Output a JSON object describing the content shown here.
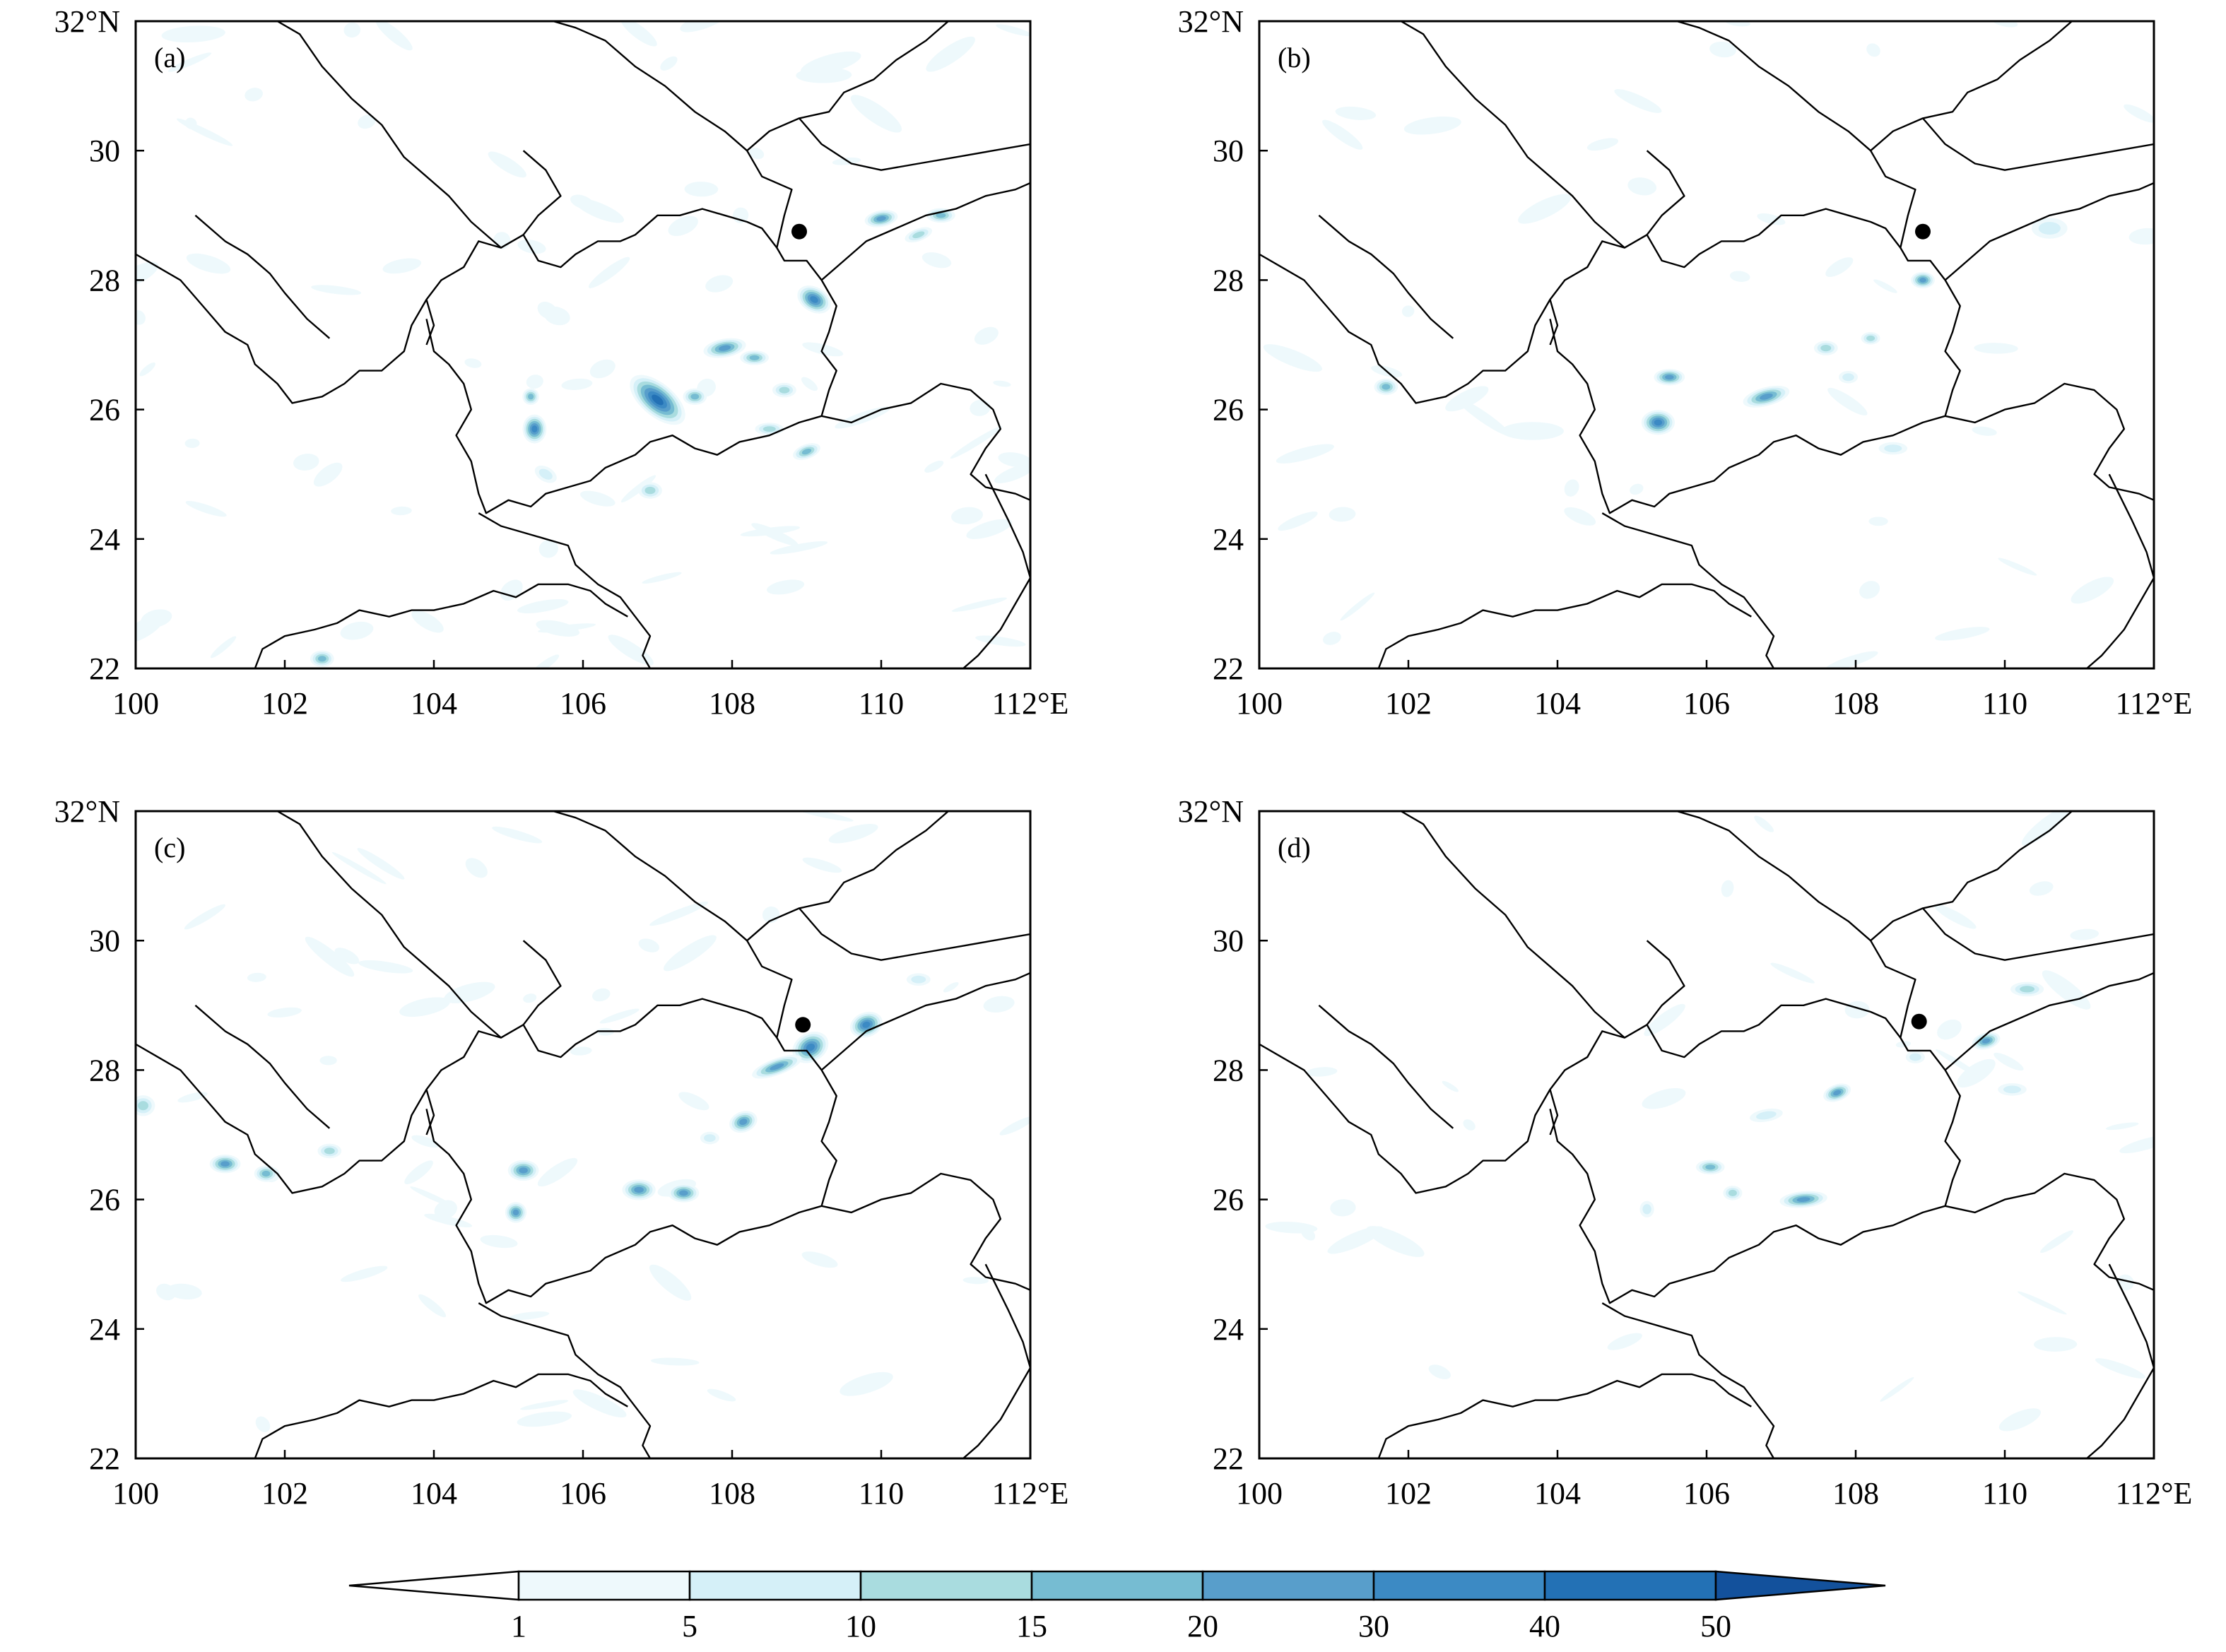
{
  "panels": [
    {
      "label": "(a)",
      "marker": {
        "lon": 108.9,
        "lat": 28.75
      },
      "cells": [
        {
          "lon": 107.0,
          "lat": 26.15,
          "rx": 0.28,
          "ry": 0.16,
          "rot": 40,
          "v": 45
        },
        {
          "lon": 109.1,
          "lat": 27.7,
          "rx": 0.15,
          "ry": 0.12,
          "rot": 30,
          "v": 30
        },
        {
          "lon": 107.9,
          "lat": 26.95,
          "rx": 0.18,
          "ry": 0.09,
          "rot": -10,
          "v": 25
        },
        {
          "lon": 105.35,
          "lat": 25.7,
          "rx": 0.1,
          "ry": 0.14,
          "rot": 0,
          "v": 30
        },
        {
          "lon": 110.0,
          "lat": 28.95,
          "rx": 0.14,
          "ry": 0.08,
          "rot": -10,
          "v": 20
        },
        {
          "lon": 110.8,
          "lat": 29.0,
          "rx": 0.12,
          "ry": 0.07,
          "rot": 0,
          "v": 15
        },
        {
          "lon": 108.3,
          "lat": 26.8,
          "rx": 0.12,
          "ry": 0.07,
          "rot": 0,
          "v": 15
        },
        {
          "lon": 109.0,
          "lat": 25.35,
          "rx": 0.12,
          "ry": 0.07,
          "rot": -20,
          "v": 15
        },
        {
          "lon": 107.5,
          "lat": 26.2,
          "rx": 0.1,
          "ry": 0.08,
          "rot": 0,
          "v": 15
        },
        {
          "lon": 105.3,
          "lat": 26.2,
          "rx": 0.07,
          "ry": 0.08,
          "rot": 0,
          "v": 15
        },
        {
          "lon": 106.9,
          "lat": 24.75,
          "rx": 0.1,
          "ry": 0.08,
          "rot": 0,
          "v": 12
        },
        {
          "lon": 108.5,
          "lat": 25.7,
          "rx": 0.12,
          "ry": 0.06,
          "rot": 0,
          "v": 12
        },
        {
          "lon": 110.5,
          "lat": 28.7,
          "rx": 0.12,
          "ry": 0.06,
          "rot": -20,
          "v": 10
        },
        {
          "lon": 102.5,
          "lat": 22.15,
          "rx": 0.1,
          "ry": 0.08,
          "rot": 0,
          "v": 15
        },
        {
          "lon": 105.5,
          "lat": 25.0,
          "rx": 0.1,
          "ry": 0.07,
          "rot": 30,
          "v": 8
        },
        {
          "lon": 108.7,
          "lat": 26.3,
          "rx": 0.1,
          "ry": 0.07,
          "rot": 0,
          "v": 10
        }
      ]
    },
    {
      "label": "(b)",
      "marker": {
        "lon": 108.9,
        "lat": 28.75
      },
      "cells": [
        {
          "lon": 105.35,
          "lat": 25.8,
          "rx": 0.14,
          "ry": 0.12,
          "rot": 0,
          "v": 30
        },
        {
          "lon": 106.8,
          "lat": 26.2,
          "rx": 0.2,
          "ry": 0.09,
          "rot": -15,
          "v": 25
        },
        {
          "lon": 105.5,
          "lat": 26.5,
          "rx": 0.13,
          "ry": 0.08,
          "rot": 0,
          "v": 20
        },
        {
          "lon": 101.7,
          "lat": 26.35,
          "rx": 0.1,
          "ry": 0.08,
          "rot": 0,
          "v": 15
        },
        {
          "lon": 108.9,
          "lat": 28.0,
          "rx": 0.1,
          "ry": 0.08,
          "rot": 0,
          "v": 20
        },
        {
          "lon": 107.6,
          "lat": 26.95,
          "rx": 0.1,
          "ry": 0.07,
          "rot": 0,
          "v": 12
        },
        {
          "lon": 108.2,
          "lat": 27.1,
          "rx": 0.08,
          "ry": 0.06,
          "rot": 0,
          "v": 10
        },
        {
          "lon": 108.5,
          "lat": 25.4,
          "rx": 0.12,
          "ry": 0.06,
          "rot": 0,
          "v": 8
        },
        {
          "lon": 110.6,
          "lat": 28.8,
          "rx": 0.15,
          "ry": 0.1,
          "rot": 0,
          "v": 5
        },
        {
          "lon": 107.9,
          "lat": 26.5,
          "rx": 0.08,
          "ry": 0.06,
          "rot": 0,
          "v": 8
        }
      ]
    },
    {
      "label": "(c)",
      "marker": {
        "lon": 108.95,
        "lat": 28.7
      },
      "cells": [
        {
          "lon": 109.05,
          "lat": 28.35,
          "rx": 0.16,
          "ry": 0.14,
          "rot": -30,
          "v": 35
        },
        {
          "lon": 109.8,
          "lat": 28.7,
          "rx": 0.14,
          "ry": 0.12,
          "rot": -20,
          "v": 30
        },
        {
          "lon": 108.6,
          "lat": 28.05,
          "rx": 0.22,
          "ry": 0.08,
          "rot": -20,
          "v": 25
        },
        {
          "lon": 106.75,
          "lat": 26.15,
          "rx": 0.14,
          "ry": 0.1,
          "rot": 0,
          "v": 25
        },
        {
          "lon": 107.35,
          "lat": 26.1,
          "rx": 0.13,
          "ry": 0.09,
          "rot": 0,
          "v": 25
        },
        {
          "lon": 105.2,
          "lat": 26.45,
          "rx": 0.13,
          "ry": 0.1,
          "rot": 0,
          "v": 25
        },
        {
          "lon": 105.1,
          "lat": 25.8,
          "rx": 0.09,
          "ry": 0.1,
          "rot": 0,
          "v": 20
        },
        {
          "lon": 108.15,
          "lat": 27.2,
          "rx": 0.12,
          "ry": 0.1,
          "rot": -20,
          "v": 20
        },
        {
          "lon": 101.2,
          "lat": 26.55,
          "rx": 0.13,
          "ry": 0.09,
          "rot": 0,
          "v": 20
        },
        {
          "lon": 101.75,
          "lat": 26.4,
          "rx": 0.1,
          "ry": 0.08,
          "rot": 0,
          "v": 15
        },
        {
          "lon": 102.6,
          "lat": 26.75,
          "rx": 0.1,
          "ry": 0.07,
          "rot": 0,
          "v": 10
        },
        {
          "lon": 100.1,
          "lat": 27.45,
          "rx": 0.1,
          "ry": 0.1,
          "rot": 0,
          "v": 10
        },
        {
          "lon": 110.5,
          "lat": 29.4,
          "rx": 0.1,
          "ry": 0.06,
          "rot": 0,
          "v": 8
        },
        {
          "lon": 107.7,
          "lat": 26.95,
          "rx": 0.08,
          "ry": 0.06,
          "rot": 0,
          "v": 8
        }
      ]
    },
    {
      "label": "(d)",
      "marker": {
        "lon": 108.85,
        "lat": 28.75
      },
      "cells": [
        {
          "lon": 107.3,
          "lat": 26.0,
          "rx": 0.2,
          "ry": 0.08,
          "rot": -5,
          "v": 25
        },
        {
          "lon": 109.75,
          "lat": 28.45,
          "rx": 0.12,
          "ry": 0.08,
          "rot": -15,
          "v": 25
        },
        {
          "lon": 107.75,
          "lat": 27.65,
          "rx": 0.12,
          "ry": 0.08,
          "rot": -20,
          "v": 20
        },
        {
          "lon": 106.05,
          "lat": 26.5,
          "rx": 0.12,
          "ry": 0.07,
          "rot": 0,
          "v": 15
        },
        {
          "lon": 110.3,
          "lat": 29.25,
          "rx": 0.14,
          "ry": 0.07,
          "rot": 0,
          "v": 10
        },
        {
          "lon": 106.8,
          "lat": 27.3,
          "rx": 0.14,
          "ry": 0.06,
          "rot": -10,
          "v": 8
        },
        {
          "lon": 106.35,
          "lat": 26.1,
          "rx": 0.08,
          "ry": 0.07,
          "rot": 0,
          "v": 12
        },
        {
          "lon": 105.2,
          "lat": 25.85,
          "rx": 0.06,
          "ry": 0.08,
          "rot": 0,
          "v": 8
        },
        {
          "lon": 108.8,
          "lat": 28.2,
          "rx": 0.08,
          "ry": 0.06,
          "rot": 0,
          "v": 8
        },
        {
          "lon": 110.1,
          "lat": 27.7,
          "rx": 0.12,
          "ry": 0.06,
          "rot": 0,
          "v": 5
        }
      ]
    }
  ],
  "x_ticks": [
    "100",
    "102",
    "104",
    "106",
    "108",
    "110",
    "112°E"
  ],
  "y_ticks": [
    "22",
    "24",
    "26",
    "28",
    "30",
    "32°N"
  ],
  "colorbar": {
    "labels": [
      "1",
      "5",
      "10",
      "15",
      "20",
      "30",
      "40",
      "50"
    ],
    "colors": [
      "#ffffff",
      "#eef9fc",
      "#d5f0f8",
      "#a9dcdf",
      "#76bcd2",
      "#589ecb",
      "#3c8ac4",
      "#2371b5",
      "#13519c"
    ]
  }
}
